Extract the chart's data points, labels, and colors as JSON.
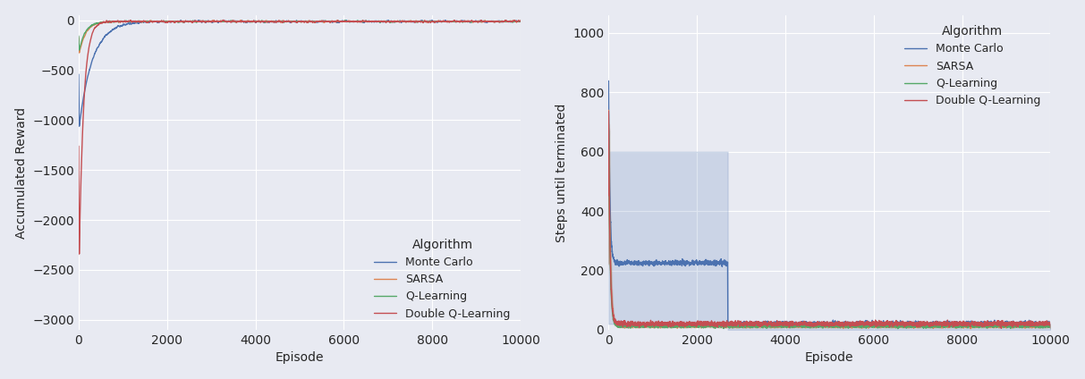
{
  "fig_width": 12.13,
  "fig_height": 4.24,
  "dpi": 100,
  "bg_color": "#e8eaf2",
  "plot_bg_color": "#e8eaf2",
  "algorithms": [
    "Monte Carlo",
    "SARSA",
    "Q-Learning",
    "Double Q-Learning"
  ],
  "colors": {
    "Monte Carlo": "#4c72b0",
    "SARSA": "#dd8452",
    "Q-Learning": "#55a868",
    "Double Q-Learning": "#c44e52"
  },
  "left_xlabel": "Episode",
  "left_ylabel": "Accumulated Reward",
  "left_xlim": [
    0,
    10000
  ],
  "left_ylim": [
    -3100,
    50
  ],
  "left_yticks": [
    0,
    -500,
    -1000,
    -1500,
    -2000,
    -2500,
    -3000
  ],
  "right_xlabel": "Episode",
  "right_ylabel": "Steps until terminated",
  "right_xlim": [
    0,
    10000
  ],
  "right_ylim": [
    0,
    1060
  ],
  "right_yticks": [
    0,
    200,
    400,
    600,
    800,
    1000
  ],
  "n_episodes": 10000,
  "legend_title": "Algorithm",
  "mc_flat_steps": 225,
  "mc_band_upper": 600,
  "mc_band_lower": 20,
  "mc_drop_ep": 2700,
  "mc_final_steps": 20
}
